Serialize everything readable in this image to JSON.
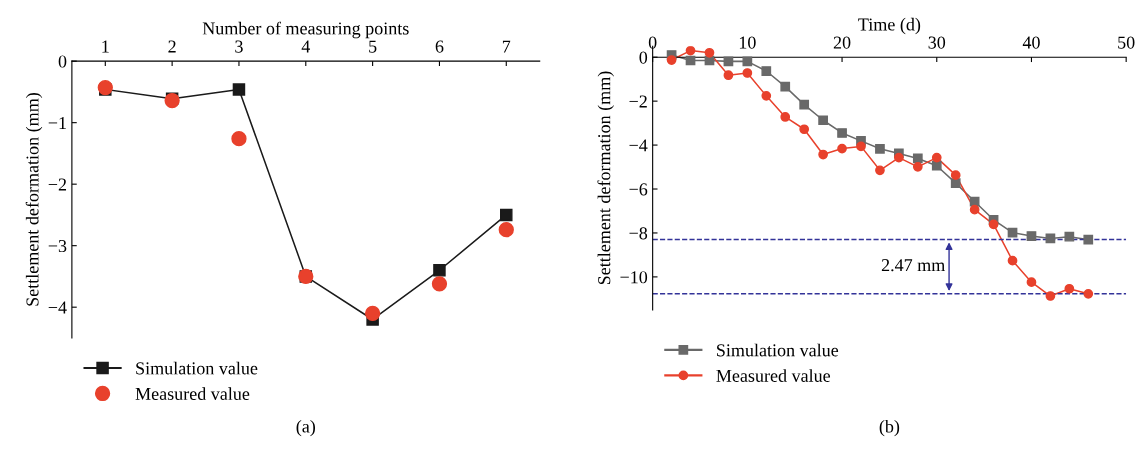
{
  "chart_data": [
    {
      "type": "line",
      "xlabel": "Number of measuring points",
      "ylabel": "Settlement deformation (mm)",
      "x": [
        1,
        2,
        3,
        4,
        5,
        6,
        7
      ],
      "xlim": [
        0.5,
        7.5
      ],
      "xticks": [
        1,
        2,
        3,
        4,
        5,
        6,
        7
      ],
      "ylim": [
        -4.5,
        0
      ],
      "yticks": [
        0,
        -1,
        -2,
        -3,
        -4
      ],
      "grid": false,
      "legend": "bottom",
      "annotations": [
        "(a)"
      ],
      "series": [
        {
          "name": "Simulation value",
          "color": "#1a1a1a",
          "marker": "square",
          "line_style": "solid",
          "values": [
            -0.46,
            -0.61,
            -0.46,
            -3.5,
            -4.2,
            -3.4,
            -2.5
          ]
        },
        {
          "name": "Measured value",
          "type": "scatter",
          "color": "#e8412c",
          "marker": "circle",
          "values": [
            -0.43,
            -0.64,
            -1.26,
            -3.5,
            -4.1,
            -3.62,
            -2.74
          ]
        }
      ]
    },
    {
      "type": "line",
      "xlabel": "Time (d)",
      "ylabel": "Settlement deformation (mm)",
      "x": [
        2,
        4,
        6,
        8,
        10,
        12,
        14,
        16,
        18,
        20,
        22,
        24,
        26,
        28,
        30,
        32,
        34,
        36,
        38,
        40,
        42,
        44,
        46
      ],
      "xlim": [
        0,
        50
      ],
      "xticks": [
        0,
        10,
        20,
        30,
        40,
        50
      ],
      "ylim": [
        -11.5,
        0.5
      ],
      "yticks": [
        0,
        -2,
        -4,
        -6,
        -8,
        -10
      ],
      "grid": false,
      "legend": "bottom",
      "annotations": [
        "2.47 mm",
        "(b)"
      ],
      "ref_lines": [
        {
          "axis": "y",
          "value": -8.3,
          "color": "#333399",
          "line_style": "dashed"
        },
        {
          "axis": "y",
          "value": -10.77,
          "color": "#333399",
          "line_style": "dashed"
        }
      ],
      "series": [
        {
          "name": "Simulation value",
          "color": "#696969",
          "marker": "square",
          "line_style": "solid",
          "values": [
            0.1,
            -0.15,
            -0.15,
            -0.19,
            -0.19,
            -0.63,
            -1.34,
            -2.16,
            -2.87,
            -3.45,
            -3.81,
            -4.17,
            -4.38,
            -4.61,
            -4.94,
            -5.73,
            -6.57,
            -7.4,
            -7.98,
            -8.14,
            -8.25,
            -8.17,
            -8.3
          ]
        },
        {
          "name": "Measured value",
          "color": "#e8412c",
          "marker": "circle",
          "line_style": "solid",
          "values": [
            -0.13,
            0.3,
            0.2,
            -0.82,
            -0.72,
            -1.76,
            -2.72,
            -3.28,
            -4.43,
            -4.16,
            -4.06,
            -5.15,
            -4.57,
            -4.99,
            -4.57,
            -5.37,
            -6.94,
            -7.61,
            -9.26,
            -10.24,
            -10.87,
            -10.54,
            -10.77
          ]
        }
      ]
    }
  ]
}
